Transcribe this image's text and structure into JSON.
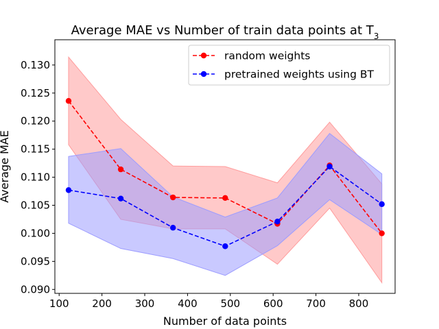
{
  "chart_data": {
    "type": "line",
    "title": "Average MAE vs Number of train data points at T",
    "title_subscript": "3",
    "xlabel": "Number of data points",
    "ylabel": "Average MAE",
    "xlim": [
      90,
      885
    ],
    "ylim": [
      0.0893,
      0.1345
    ],
    "xticks": [
      100,
      200,
      300,
      400,
      500,
      600,
      700,
      800
    ],
    "yticks": [
      0.09,
      0.095,
      0.1,
      0.105,
      0.11,
      0.115,
      0.12,
      0.125,
      0.13
    ],
    "ytick_labels": [
      "0.090",
      "0.095",
      "0.100",
      "0.105",
      "0.110",
      "0.115",
      "0.120",
      "0.125",
      "0.130"
    ],
    "x": [
      122,
      244,
      366,
      488,
      610,
      732,
      854
    ],
    "legend_position": "top-right",
    "grid": false,
    "series": [
      {
        "name": "random weights",
        "color": "#ff0000",
        "band_color": "#ff9c9c",
        "values": [
          0.1236,
          0.1114,
          0.1064,
          0.1063,
          0.1017,
          0.1121,
          0.1
        ],
        "lower": [
          0.1158,
          0.1025,
          0.1008,
          0.1008,
          0.0945,
          0.1045,
          0.0912
        ],
        "upper": [
          0.1314,
          0.1203,
          0.112,
          0.1119,
          0.109,
          0.1198,
          0.1088
        ]
      },
      {
        "name": "pretrained weights using BT",
        "color": "#0000ff",
        "band_color": "#9c9cff",
        "values": [
          0.1077,
          0.1062,
          0.101,
          0.0977,
          0.1021,
          0.1119,
          0.1052
        ],
        "lower": [
          0.1018,
          0.0973,
          0.0955,
          0.0925,
          0.0978,
          0.106,
          0.0998
        ],
        "upper": [
          0.1137,
          0.1151,
          0.1065,
          0.1029,
          0.1063,
          0.1178,
          0.1106
        ]
      }
    ]
  }
}
